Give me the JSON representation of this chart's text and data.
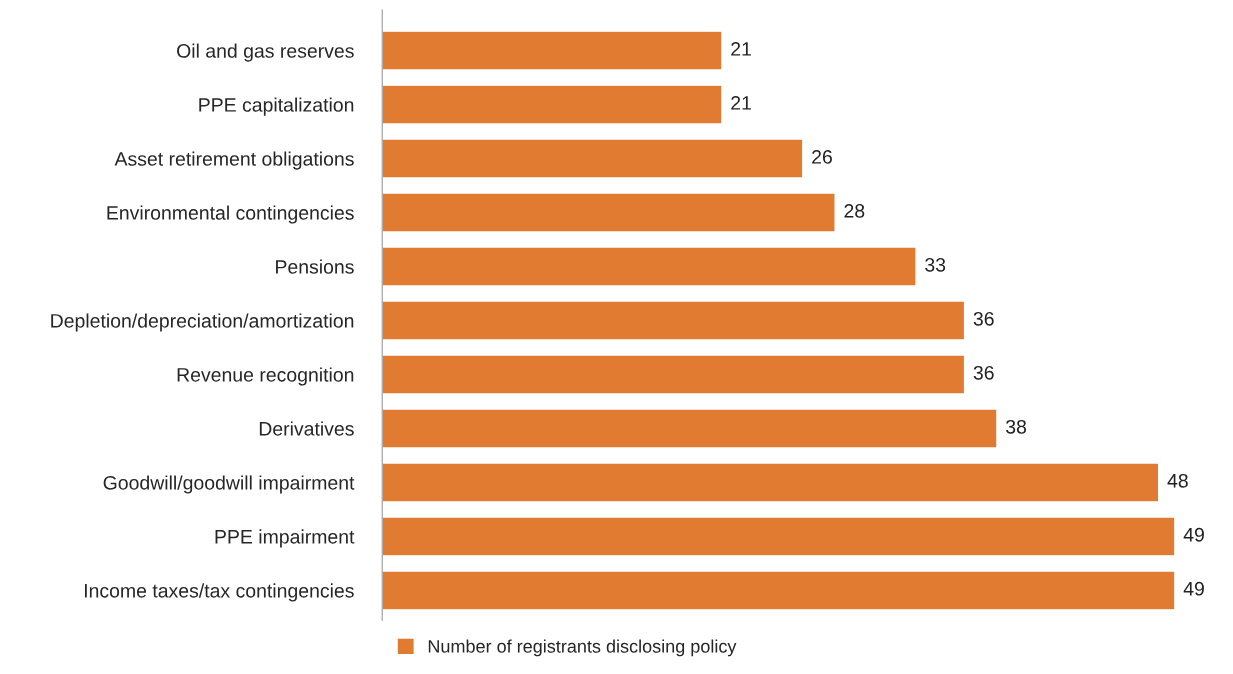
{
  "chart_data": {
    "type": "bar",
    "orientation": "horizontal",
    "categories": [
      "Oil and gas reserves",
      "PPE capitalization",
      "Asset retirement obligations",
      "Environmental contingencies",
      "Pensions",
      "Depletion/depreciation/amortization",
      "Revenue recognition",
      "Derivatives",
      "Goodwill/goodwill impairment",
      "PPE impairment",
      "Income taxes/tax contingencies"
    ],
    "series": [
      {
        "name": "Number of registrants disclosing policy",
        "color": "#e07b31",
        "values": [
          21,
          21,
          26,
          28,
          33,
          36,
          36,
          38,
          48,
          49,
          49
        ]
      }
    ],
    "data_labels": true,
    "legend": "bottom",
    "grid": false
  }
}
